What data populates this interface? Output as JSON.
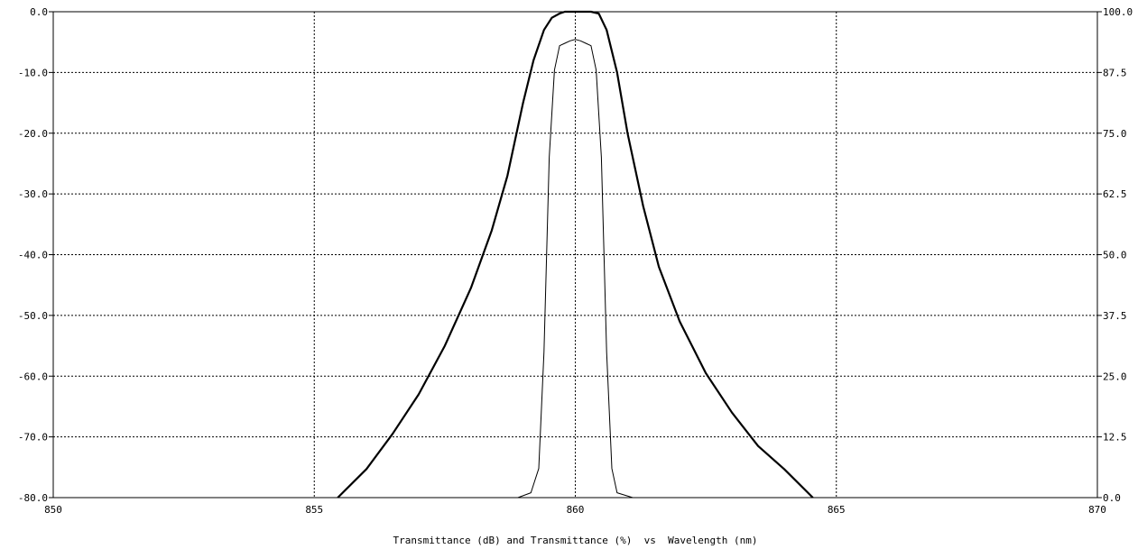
{
  "chart_data": {
    "type": "line",
    "xlabel": "Transmittance (dB) and Transmittance (%)  vs  Wavelength (nm)",
    "xlim": [
      850,
      870
    ],
    "x_ticks": [
      "850",
      "855",
      "860",
      "865",
      "870"
    ],
    "y_left_lim": [
      -80,
      0
    ],
    "y_left_ticks": [
      "0.0",
      "-10.0",
      "-20.0",
      "-30.0",
      "-40.0",
      "-50.0",
      "-60.0",
      "-70.0",
      "-80.0"
    ],
    "y_right_lim": [
      0,
      100
    ],
    "y_right_ticks": [
      "100.0",
      "87.5",
      "75.0",
      "62.5",
      "50.0",
      "37.5",
      "25.0",
      "12.5",
      "0.0"
    ],
    "grid": true,
    "series": [
      {
        "axis": "left",
        "x": [
          855.45,
          856.0,
          856.5,
          857.0,
          857.5,
          858.0,
          858.4,
          858.7,
          859.0,
          859.2,
          859.4,
          859.55,
          859.7,
          859.8,
          859.9,
          860.0,
          860.1,
          860.2,
          860.3,
          860.45,
          860.6,
          860.8,
          861.0,
          861.3,
          861.6,
          862.0,
          862.5,
          863.0,
          863.5,
          864.0,
          864.55
        ],
        "y": [
          -80,
          -75.3,
          -69.5,
          -63.0,
          -55.0,
          -45.5,
          -36.0,
          -27.0,
          -15.0,
          -8.0,
          -3.0,
          -1.0,
          -0.3,
          0.0,
          0.0,
          0.0,
          0.0,
          0.0,
          0.0,
          -0.3,
          -3.0,
          -10.0,
          -20.0,
          -32.0,
          -42.0,
          -51.0,
          -59.5,
          -66.0,
          -71.5,
          -75.3,
          -80
        ]
      },
      {
        "axis": "right",
        "x": [
          858.9,
          859.15,
          859.3,
          859.4,
          859.5,
          859.6,
          859.7,
          859.8,
          859.9,
          860.0,
          860.1,
          860.2,
          860.3,
          860.4,
          860.5,
          860.6,
          860.7,
          860.8,
          861.1
        ],
        "y": [
          0,
          1.0,
          6.0,
          30.0,
          70.0,
          88.0,
          93.0,
          93.5,
          94.0,
          94.3,
          94.0,
          93.5,
          93.0,
          88.0,
          70.0,
          30.0,
          6.0,
          1.0,
          0
        ]
      }
    ]
  }
}
